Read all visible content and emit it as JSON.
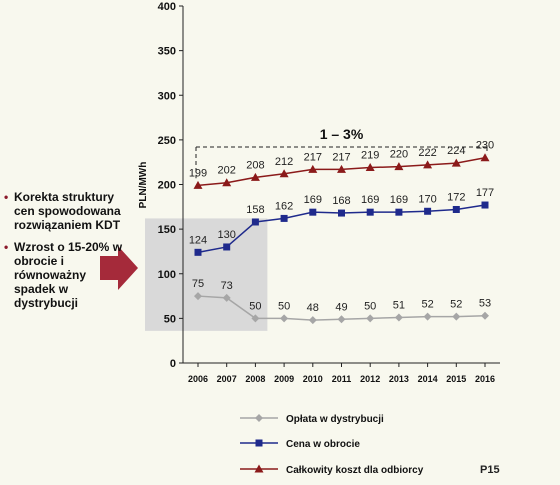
{
  "bullets": [
    "Korekta struktury cen spowodowana rozwiązaniem KDT",
    "Wzrost o 15-20% w obrocie i równoważny spadek w dystrybucji"
  ],
  "page_label": "P15",
  "annotation": "1 – 3%",
  "colors": {
    "background": "#f8f8ee",
    "highlight_box": "#d9d9d9",
    "arrow": "#a52a3a",
    "bullet": "#8b1a2b",
    "series_distribution": "#a6a6a6",
    "series_trade": "#1f2a8c",
    "series_total": "#8b1a1a"
  },
  "chart_data": {
    "type": "line",
    "ylabel": "PLN/MWh",
    "xlabel": "",
    "ylim": [
      0,
      400
    ],
    "yticks": [
      0,
      50,
      100,
      150,
      200,
      250,
      300,
      350,
      400
    ],
    "categories": [
      "2006",
      "2007",
      "2008",
      "2009",
      "2010",
      "2011",
      "2012",
      "2013",
      "2014",
      "2015",
      "2016"
    ],
    "grid": false,
    "legend_position": "bottom",
    "series": [
      {
        "name": "Opłata w dystrybucji",
        "marker": "diamond",
        "color": "#a6a6a6",
        "values": [
          75,
          73,
          50,
          50,
          48,
          49,
          50,
          51,
          52,
          52,
          53
        ]
      },
      {
        "name": "Cena w obrocie",
        "marker": "square",
        "color": "#1f2a8c",
        "values": [
          124,
          130,
          158,
          162,
          169,
          168,
          169,
          169,
          170,
          172,
          177
        ]
      },
      {
        "name": "Całkowity koszt dla odbiorcy",
        "marker": "triangle",
        "color": "#8b1a1a",
        "values": [
          199,
          202,
          208,
          212,
          217,
          217,
          219,
          220,
          222,
          224,
          230
        ]
      }
    ]
  }
}
